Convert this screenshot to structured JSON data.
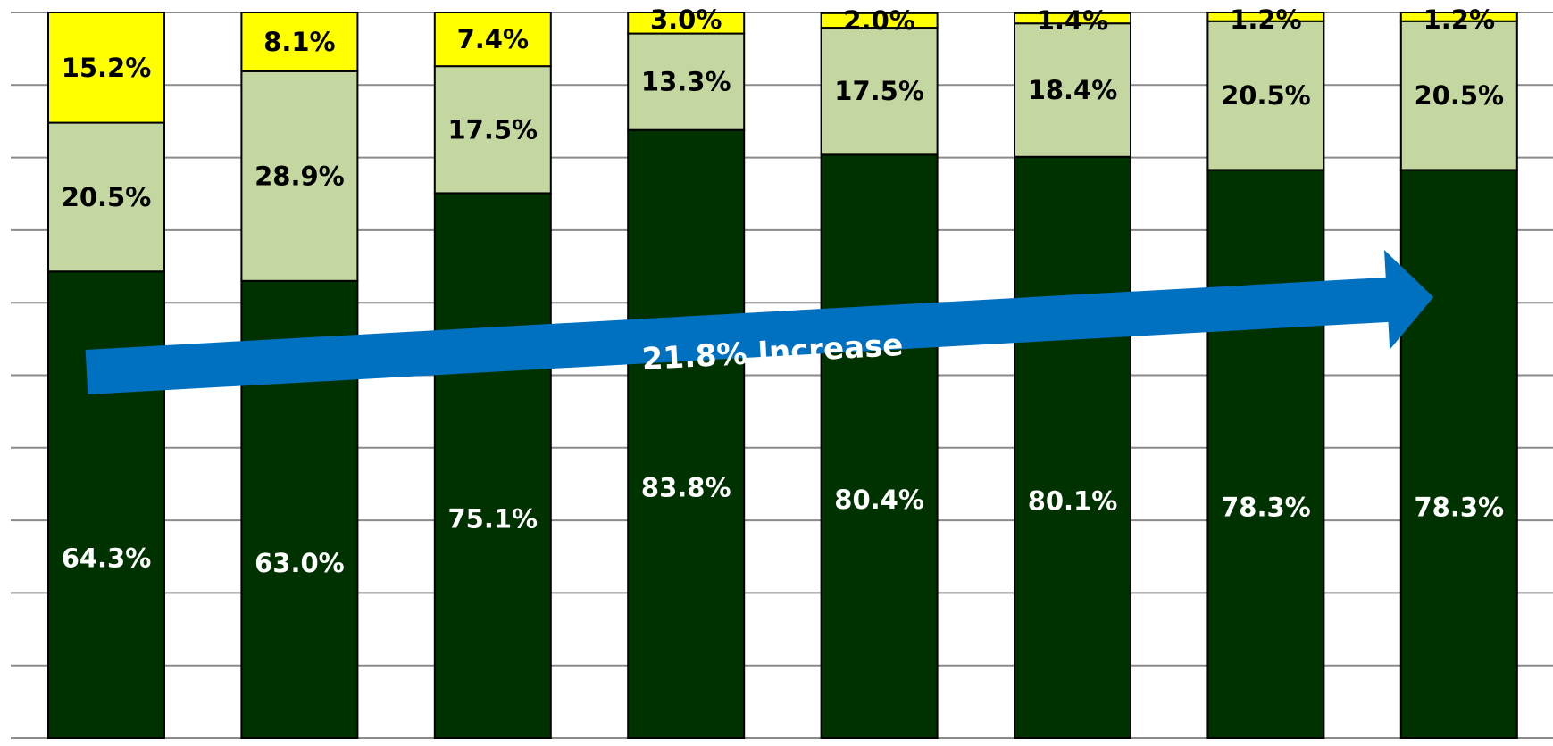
{
  "chart_data": {
    "type": "bar",
    "stacked": true,
    "orientation": "vertical",
    "normalized_percent": true,
    "ylim": [
      0,
      100
    ],
    "grid": true,
    "grid_step": 10,
    "categories": [
      "",
      "",
      "",
      "",
      "",
      "",
      "",
      ""
    ],
    "series": [
      {
        "key": "bottom",
        "color": "#003200",
        "label_color": "#ffffff",
        "values": [
          64.3,
          63.0,
          75.1,
          83.8,
          80.4,
          80.1,
          78.3,
          78.3
        ],
        "labels": [
          "64.3%",
          "63.0%",
          "75.1%",
          "83.8%",
          "80.4%",
          "80.1%",
          "78.3%",
          "78.3%"
        ]
      },
      {
        "key": "middle",
        "color": "#c4d7a0",
        "label_color": "#000000",
        "values": [
          20.5,
          28.9,
          17.5,
          13.3,
          17.5,
          18.4,
          20.5,
          20.5
        ],
        "labels": [
          "20.5%",
          "28.9%",
          "17.5%",
          "13.3%",
          "17.5%",
          "18.4%",
          "20.5%",
          "20.5%"
        ]
      },
      {
        "key": "top",
        "color": "#ffff00",
        "label_color": "#000000",
        "values": [
          15.2,
          8.1,
          7.4,
          3.0,
          2.0,
          1.4,
          1.2,
          1.2
        ],
        "labels": [
          "15.2%",
          "8.1%",
          "7.4%",
          "3.0%",
          "2.0%",
          "1.4%",
          "1.2%",
          "1.2%"
        ]
      }
    ],
    "annotations": [
      {
        "type": "arrow",
        "text": "21.8% Increase",
        "color": "#0070c0",
        "text_color": "#ffffff"
      }
    ]
  }
}
